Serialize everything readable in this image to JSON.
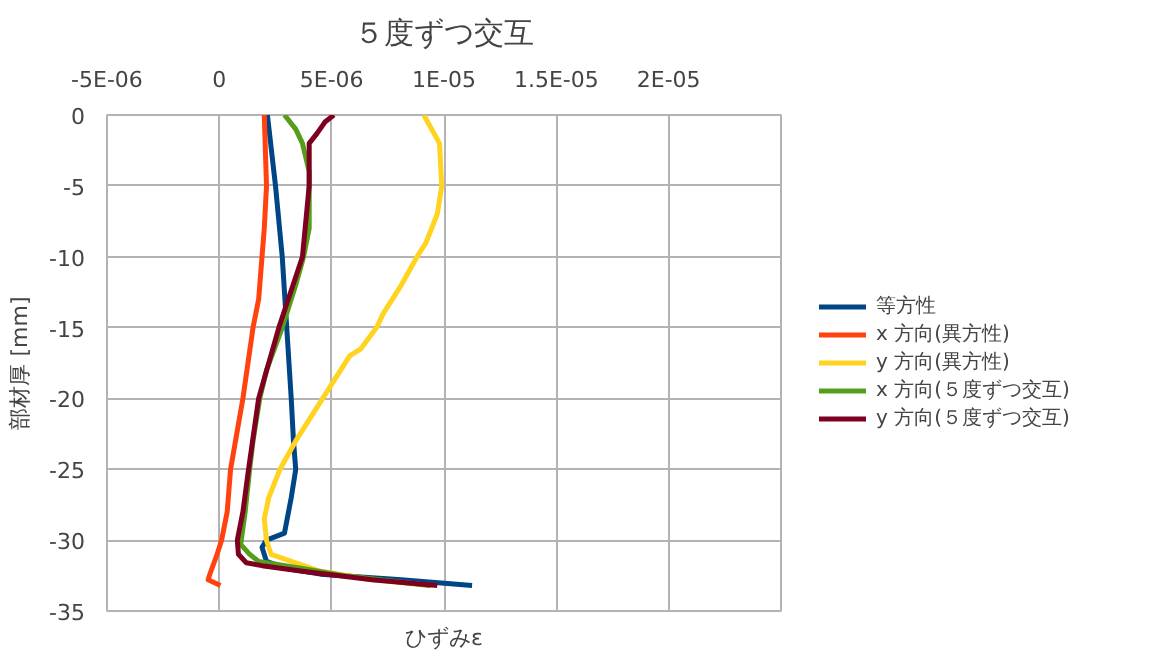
{
  "chart_data": {
    "type": "line",
    "title": "５度ずつ交互",
    "xlabel": "ひずみε",
    "ylabel": "部材厚 [mm]",
    "xlim": [
      -5e-06,
      2.5e-05
    ],
    "ylim": [
      -35,
      0
    ],
    "xticks": [
      {
        "value": -5e-06,
        "label": "-5E-06"
      },
      0,
      {
        "value": 5e-06,
        "label": "5E-06"
      },
      {
        "value": 1e-05,
        "label": "1E-05"
      },
      {
        "value": 1.5e-05,
        "label": "1.5E-05"
      },
      {
        "value": 2e-05,
        "label": "2E-05"
      },
      {
        "value": 2.5e-05,
        "label": null
      }
    ],
    "yticks": [
      0,
      -5,
      -10,
      -15,
      -20,
      -25,
      -30,
      -35
    ],
    "grid": true,
    "legend": "right",
    "series": [
      {
        "name": "等方性",
        "color": "#004586",
        "x": [
          2.14e-06,
          2.5e-06,
          2.8e-06,
          3e-06,
          3.2e-06,
          3.3e-06,
          3.4e-06,
          3.2e-06,
          2.9e-06,
          2.1e-06,
          1.9e-06,
          2.1e-06,
          3e-06,
          4.5e-06,
          8.1e-06,
          1.125e-05
        ],
        "values": [
          0,
          -5,
          -10,
          -15,
          -20,
          -23,
          -25,
          -27,
          -29.5,
          -30,
          -30.5,
          -31.5,
          -32,
          -32.4,
          -32.8,
          -33.2
        ]
      },
      {
        "name": "x 方向(異方性)",
        "color": "#ff420e",
        "x": [
          2e-06,
          2.1e-06,
          2e-06,
          1.9e-06,
          1.75e-06,
          1.5e-06,
          1.05e-06,
          5e-07,
          3.5e-07,
          1e-07,
          -1e-07,
          -4e-07,
          -5e-07,
          5e-08
        ],
        "values": [
          0,
          -5,
          -8,
          -10,
          -13,
          -15,
          -20,
          -25,
          -28,
          -30,
          -31,
          -32.3,
          -32.8,
          -33.2
        ]
      },
      {
        "name": "y 方向(異方性)",
        "color": "#ffd320",
        "x": [
          9.1e-06,
          9.8e-06,
          9.9e-06,
          9.7e-06,
          9.2e-06,
          8.8e-06,
          8.1e-06,
          7.3e-06,
          7e-06,
          6.3e-06,
          5.8e-06,
          5.4e-06,
          4.6e-06,
          4e-06,
          3.4e-06,
          2.7e-06,
          2.2e-06,
          2e-06,
          2.1e-06,
          2.3e-06,
          3.4e-06,
          4.5e-06,
          6.8e-06,
          9.4e-06
        ],
        "values": [
          0,
          -2,
          -5,
          -7,
          -9,
          -10,
          -12,
          -14,
          -15,
          -16.5,
          -17,
          -18,
          -20,
          -21.5,
          -23,
          -25,
          -27,
          -28.5,
          -30,
          -31,
          -31.6,
          -32.2,
          -32.8,
          -33.2
        ]
      },
      {
        "name": "x 方向(５度ずつ交互)",
        "color": "#579d1c",
        "x": [
          2.9e-06,
          3.4e-06,
          3.7e-06,
          4e-06,
          4e-06,
          4e-06,
          3.75e-06,
          3.4e-06,
          2.8e-06,
          2.1e-06,
          1.8e-06,
          1.5e-06,
          1.35e-06,
          1.15e-06,
          9.5e-07,
          1.35e-06,
          1.75e-06,
          3.7e-06,
          5.5e-06,
          9.4e-06
        ],
        "values": [
          0,
          -1,
          -2,
          -4,
          -5,
          -8,
          -10,
          -12,
          -15,
          -18,
          -20,
          -23,
          -25,
          -28,
          -30.3,
          -31,
          -31.5,
          -32,
          -32.5,
          -33.2
        ]
      },
      {
        "name": "y 方向(５度ずつ交互)",
        "color": "#7e0021",
        "x": [
          5.1e-06,
          4.7e-06,
          4.35e-06,
          4e-06,
          4e-06,
          3.7e-06,
          2.65e-06,
          1.75e-06,
          1.3e-06,
          1.05e-06,
          8e-07,
          8.5e-07,
          1.2e-06,
          1.9e-06,
          3.7e-06,
          6.8e-06,
          9.7e-06
        ],
        "values": [
          0,
          -0.5,
          -1.3,
          -2,
          -5,
          -10,
          -15,
          -20,
          -25,
          -28,
          -30,
          -31,
          -31.6,
          -31.8,
          -32.2,
          -32.8,
          -33.2
        ]
      }
    ]
  }
}
